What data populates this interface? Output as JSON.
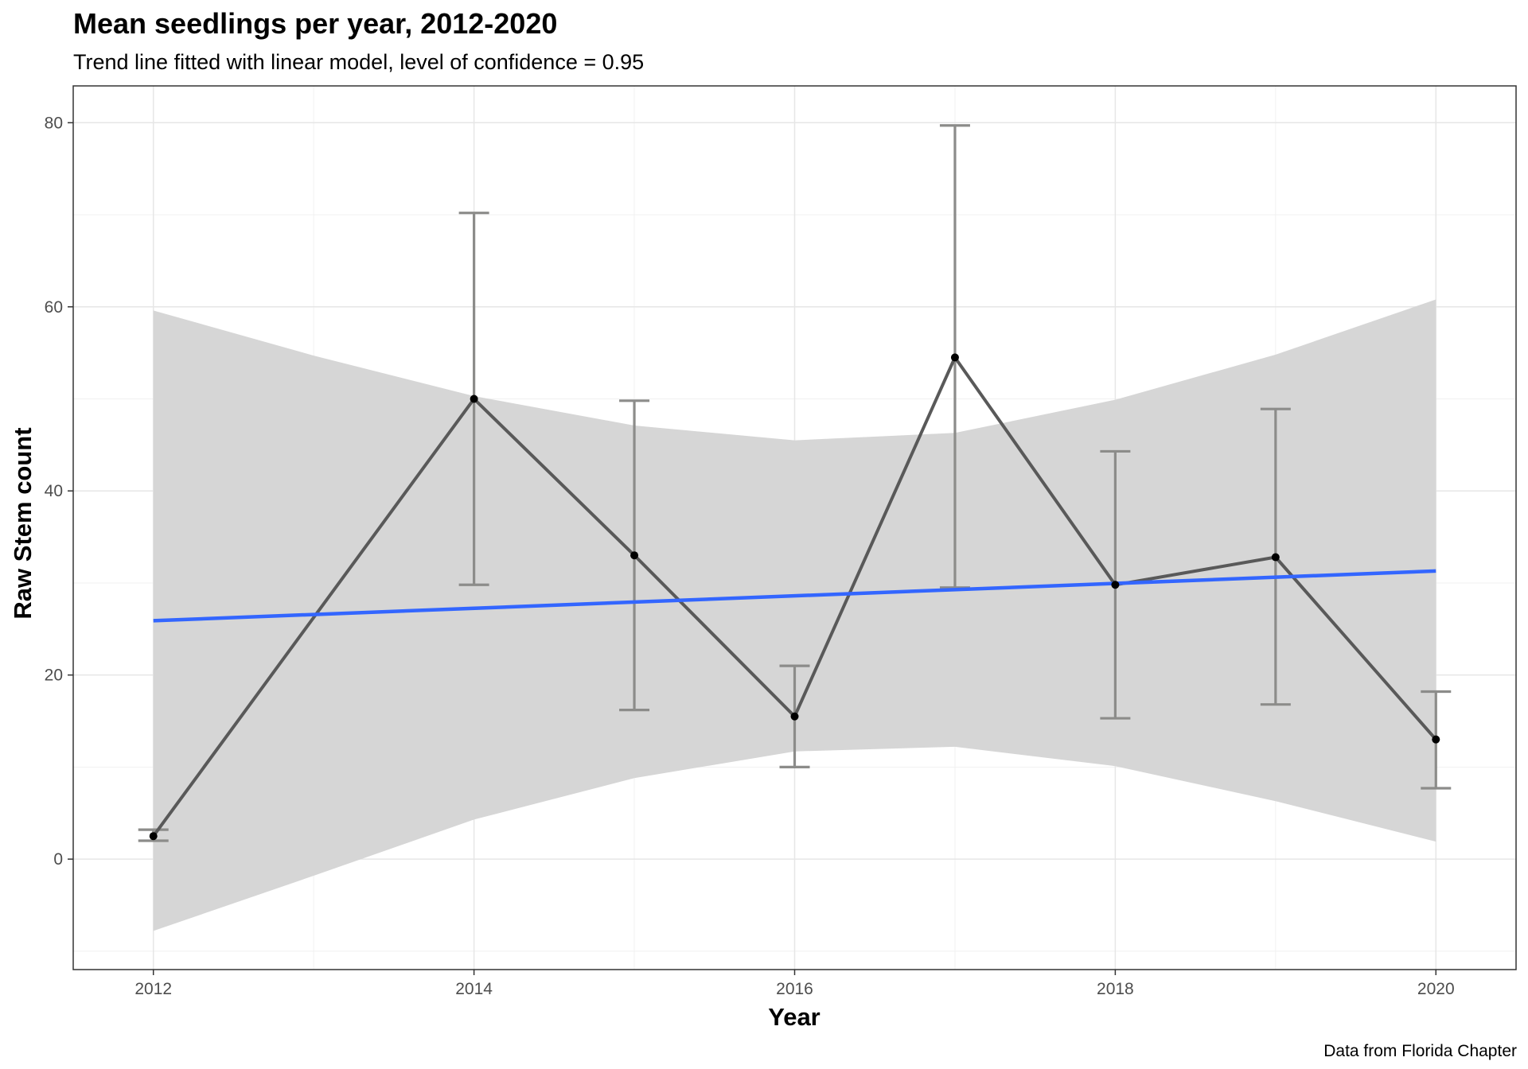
{
  "chart_data": {
    "type": "line",
    "title": "Mean seedlings per year, 2012-2020",
    "subtitle": "Trend line fitted with linear model, level of confidence = 0.95",
    "xlabel": "Year",
    "ylabel": "Raw Stem count",
    "caption": "Data from Florida Chapter",
    "xlim": [
      2011.5,
      2020.5
    ],
    "ylim": [
      -12,
      84
    ],
    "x_ticks": [
      2012,
      2014,
      2016,
      2018,
      2020
    ],
    "y_ticks": [
      0,
      20,
      40,
      60,
      80
    ],
    "grid": true,
    "series": [
      {
        "kind": "mean-with-error-bars",
        "x": [
          2012,
          2014,
          2015,
          2016,
          2017,
          2018,
          2019,
          2020
        ],
        "y": [
          2.5,
          50,
          33,
          15.5,
          54.5,
          29.8,
          32.8,
          13
        ],
        "error_low": [
          2.0,
          29.8,
          16.2,
          10.0,
          29.5,
          15.3,
          16.8,
          7.7
        ],
        "error_high": [
          3.2,
          70.2,
          49.8,
          21.0,
          79.7,
          44.3,
          48.9,
          18.2
        ],
        "color": "#595959",
        "errorbar_color": "#8c8c8a"
      },
      {
        "kind": "linear-fit",
        "x": [
          2012,
          2013,
          2014,
          2015,
          2016,
          2017,
          2018,
          2019,
          2020
        ],
        "y": [
          25.9,
          26.6,
          27.2,
          27.9,
          28.6,
          29.3,
          29.9,
          30.6,
          31.3
        ],
        "ci_low": [
          -7.8,
          -1.8,
          4.3,
          8.8,
          11.7,
          12.2,
          10.1,
          6.3,
          1.9
        ],
        "ci_high": [
          59.6,
          54.7,
          50.3,
          47.1,
          45.5,
          46.3,
          49.9,
          54.8,
          60.8
        ],
        "color": "#3366ff",
        "ribbon_color": "#d6d6d6"
      }
    ]
  }
}
